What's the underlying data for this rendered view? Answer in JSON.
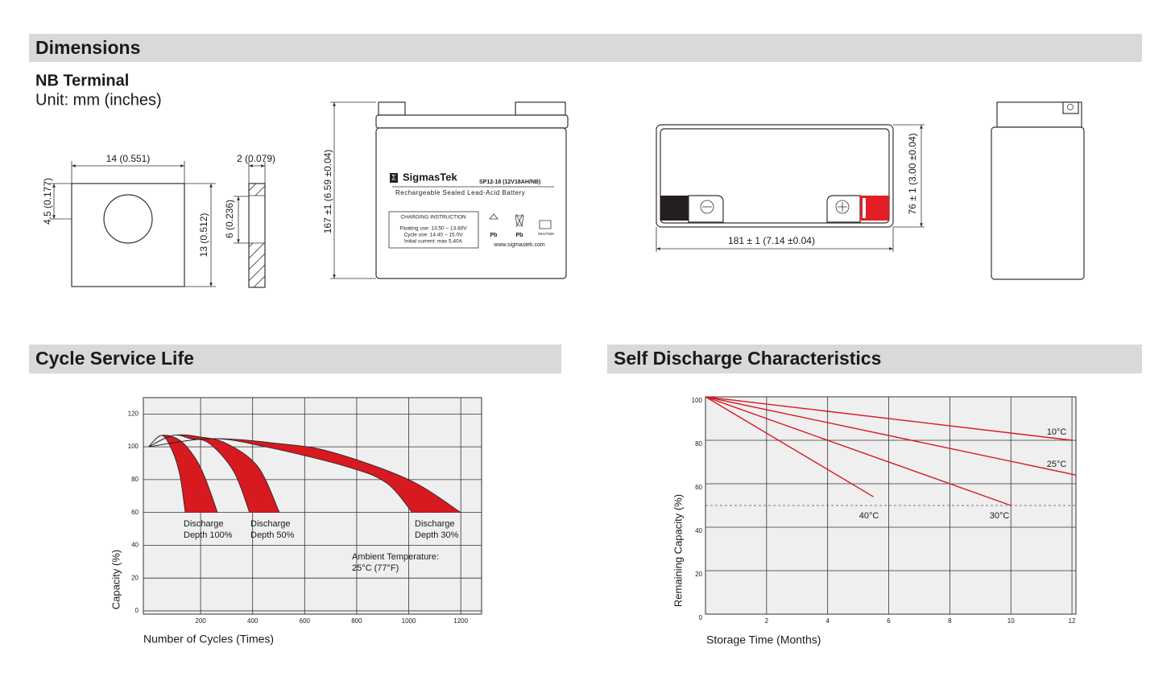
{
  "sections": {
    "dimensions": "Dimensions",
    "cycle": "Cycle Service Life",
    "self_discharge": "Self Discharge Characteristics"
  },
  "terminal": {
    "title": "NB Terminal",
    "unit": "Unit: mm (inches)",
    "width": "14 (0.551)",
    "hole_offset": "4.5 (0.177)",
    "height": "13 (0.512)",
    "thickness": "2 (0.079)",
    "bend": "6 (0.236)"
  },
  "battery": {
    "height": "167 ±1 (6.59 ±0.04)",
    "length": "181 ± 1 (7.14 ±0.04)",
    "width": "76 ± 1 (3.00 ±0.04)",
    "label": {
      "brand": "SigmasTek",
      "model": "SP12-18 (12V18AH/NB)",
      "desc": "Rechargeable Sealed Lead-Acid Battery",
      "charging_title": "CHARGING INSTRUCTION",
      "floating": "Floating use: 13.50 ~ 13.80V",
      "cycle": "Cycle use: 14.40 ~ 15.0V",
      "current": "Initial current: max 5.40A",
      "website": "www.sigmastek.com",
      "pb1": "Pb",
      "pb2": "Pb",
      "ul": "MH47929"
    }
  },
  "chart_data": [
    {
      "type": "band",
      "x_label": "Number of Cycles (Times)",
      "y_label": "Capacity (%)",
      "xlim": [
        -20,
        1280
      ],
      "ylim": [
        -2,
        130
      ],
      "xticks": [
        200,
        400,
        600,
        800,
        1000,
        1200
      ],
      "yticks": [
        0,
        20,
        40,
        60,
        80,
        100,
        120
      ],
      "grid": true,
      "bands": [
        {
          "color": "#d71920",
          "edges": [
            {
              "x": [
                0,
                50,
                120,
                180,
                220,
                265
              ],
              "values": [
                100,
                107,
                104,
                93,
                80,
                60
              ]
            },
            {
              "x": [
                0,
                50,
                90,
                120,
                141
              ],
              "values": [
                100,
                107,
                98,
                83,
                60
              ]
            }
          ]
        },
        {
          "color": "#d71920",
          "edges": [
            {
              "x": [
                0,
                94,
                200,
                300,
                420,
                503
              ],
              "values": [
                100,
                107,
                106,
                102,
                88,
                60
              ]
            },
            {
              "x": [
                0,
                94,
                160,
                234,
                327,
                388
              ],
              "values": [
                100,
                107,
                105,
                102,
                85,
                60
              ]
            }
          ]
        },
        {
          "color": "#d71920",
          "edges": [
            {
              "x": [
                0,
                240,
                500,
                700,
                1000,
                1200
              ],
              "values": [
                100,
                105,
                102,
                97,
                80,
                60
              ]
            },
            {
              "x": [
                0,
                240,
                450,
                760,
                914,
                1013
              ],
              "values": [
                100,
                105,
                100,
                88,
                78,
                60
              ]
            }
          ]
        }
      ],
      "annotations": [
        [
          "Discharge",
          "Depth 100%"
        ],
        [
          "Discharge",
          "Depth 50%"
        ],
        [
          "Discharge",
          "Depth 30%"
        ],
        [
          "Ambient Temperature:",
          "25°C (77°F)"
        ]
      ]
    },
    {
      "type": "line",
      "x_label": "Storage Time (Months)",
      "y_label": "Remaining Capacity (%)",
      "xlim": [
        0,
        12.13
      ],
      "ylim": [
        0,
        100
      ],
      "xticks": [
        2,
        4,
        6,
        8,
        10,
        12
      ],
      "yticks": [
        0,
        20,
        40,
        60,
        80,
        100
      ],
      "grid": true,
      "reference_line": 50,
      "series": [
        {
          "name": "10°C",
          "color": "#d71920",
          "x": [
            0,
            12
          ],
          "values": [
            100,
            80
          ]
        },
        {
          "name": "25°C",
          "color": "#d71920",
          "x": [
            0,
            12.13
          ],
          "values": [
            100,
            64
          ]
        },
        {
          "name": "30°C",
          "color": "#d71920",
          "x": [
            0,
            10
          ],
          "values": [
            100,
            50
          ]
        },
        {
          "name": "40°C",
          "color": "#d71920",
          "x": [
            0,
            5.5
          ],
          "values": [
            100,
            54
          ]
        }
      ]
    }
  ]
}
